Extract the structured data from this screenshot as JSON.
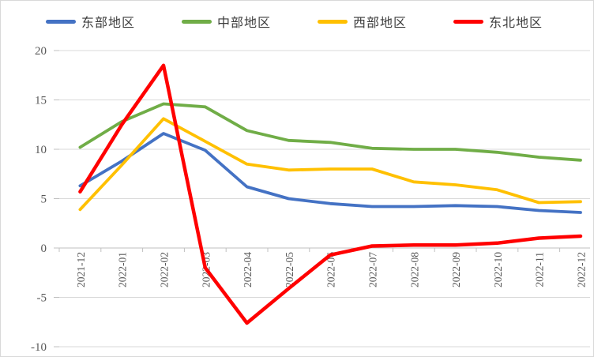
{
  "chart_data": {
    "type": "line",
    "title": "",
    "xlabel": "",
    "ylabel": "",
    "categories": [
      "2021-12",
      "2022-01",
      "2022-02",
      "2022-03",
      "2022-04",
      "2022-05",
      "2022-06",
      "2022-07",
      "2022-08",
      "2022-09",
      "2022-10",
      "2022-11",
      "2022-12"
    ],
    "series": [
      {
        "name": "东部地区",
        "color": "#4472C4",
        "values": [
          6.3,
          8.8,
          11.6,
          9.9,
          6.2,
          5.0,
          4.5,
          4.2,
          4.2,
          4.3,
          4.2,
          3.8,
          3.6
        ]
      },
      {
        "name": "中部地区",
        "color": "#70AD47",
        "values": [
          10.2,
          12.8,
          14.6,
          14.3,
          11.9,
          10.9,
          10.7,
          10.1,
          10.0,
          10.0,
          9.7,
          9.2,
          8.9
        ]
      },
      {
        "name": "西部地区",
        "color": "#FFC000",
        "values": [
          3.9,
          8.4,
          13.1,
          10.8,
          8.5,
          7.9,
          8.0,
          8.0,
          6.7,
          6.4,
          5.9,
          4.6,
          4.7
        ]
      },
      {
        "name": "东北地区",
        "color": "#FF0000",
        "values": [
          5.7,
          12.5,
          18.5,
          -2.0,
          -7.6,
          -4.1,
          -0.7,
          0.2,
          0.3,
          0.3,
          0.5,
          1.0,
          1.2
        ]
      }
    ],
    "ylim": [
      -10,
      20
    ],
    "yticks": [
      -10,
      -5,
      0,
      5,
      10,
      15,
      20
    ],
    "grid": true,
    "legend_position": "top"
  },
  "style": {
    "gridline_color": "#d9d9d9",
    "axis_color": "#bfbfbf",
    "tick_color": "#c0c0c0",
    "tick_label_color": "#595959",
    "background": "#ffffff"
  }
}
